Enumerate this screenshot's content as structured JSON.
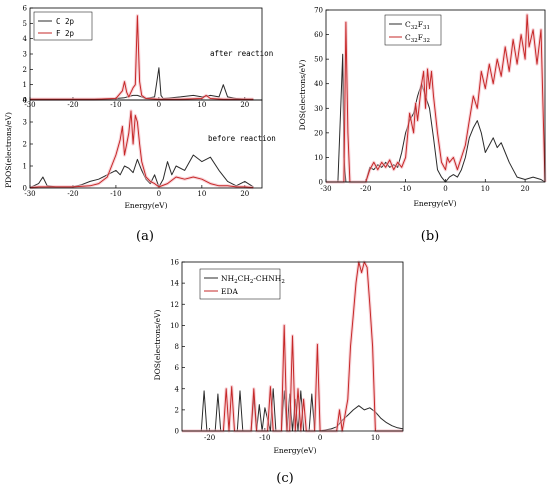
{
  "colors": {
    "black_series": "#2b2b2b",
    "red_series": "#c62828",
    "red_glow": "#f3b8c0"
  },
  "chart_data": [
    {
      "id": "a",
      "type": "line",
      "panel_label": "(a)",
      "xlabel": "Energy(eV)",
      "ylabel": "PDOS(electrons/eV)",
      "xlim": [
        -30,
        24
      ],
      "xticks": [
        -30,
        -20,
        -10,
        0,
        10,
        20
      ],
      "legend": [
        "C 2p",
        "F 2p"
      ],
      "legend_position": "top-left",
      "subplots": [
        {
          "annotation": "after reaction",
          "ylim": [
            0,
            6
          ],
          "yticks": [
            0,
            1,
            2,
            3,
            4,
            5,
            6
          ],
          "series": [
            {
              "name": "C 2p",
              "color": "#2b2b2b",
              "x": [
                -30,
                -26,
                -20,
                -15,
                -10,
                -8,
                -6,
                -5,
                -3,
                -1,
                0,
                0.5,
                1,
                3,
                5,
                8,
                10,
                12,
                14,
                15,
                16,
                18,
                20,
                22
              ],
              "y": [
                0.05,
                0.05,
                0.05,
                0.05,
                0.1,
                0.15,
                0.3,
                0.3,
                0.1,
                0.2,
                2.1,
                0.3,
                0.1,
                0.15,
                0.2,
                0.3,
                0.2,
                0.3,
                0.2,
                1.0,
                0.2,
                0.1,
                0.05,
                0.05
              ]
            },
            {
              "name": "F 2p",
              "color": "#c62828",
              "x": [
                -30,
                -26,
                -20,
                -15,
                -10,
                -8.5,
                -8,
                -7.5,
                -7,
                -6,
                -5.5,
                -5,
                -4.5,
                -4,
                -3,
                0,
                5,
                10,
                11,
                12,
                15,
                20,
                22
              ],
              "y": [
                0.05,
                0.05,
                0.05,
                0.05,
                0.1,
                0.6,
                1.2,
                0.5,
                0.2,
                0.8,
                1.0,
                5.5,
                1.2,
                0.3,
                0.1,
                0.05,
                0.05,
                0.1,
                0.3,
                0.1,
                0.05,
                0.05,
                0.05
              ]
            }
          ]
        },
        {
          "annotation": "before reaction",
          "ylim": [
            0,
            4
          ],
          "yticks": [
            0,
            1,
            2,
            3,
            4
          ],
          "series": [
            {
              "name": "C 2p",
              "color": "#2b2b2b",
              "x": [
                -30,
                -28,
                -27,
                -26,
                -24,
                -20,
                -18,
                -16,
                -14,
                -12,
                -10,
                -9,
                -8,
                -7,
                -6,
                -5,
                -4,
                -3,
                -2,
                -1,
                0,
                1,
                2,
                3,
                4,
                6,
                8,
                10,
                12,
                14,
                16,
                18,
                20,
                22
              ],
              "y": [
                0.02,
                0.2,
                0.5,
                0.1,
                0.05,
                0.05,
                0.15,
                0.3,
                0.4,
                0.6,
                0.8,
                0.6,
                1.0,
                0.9,
                0.7,
                1.3,
                0.8,
                0.4,
                0.2,
                0.6,
                0.05,
                0.4,
                1.2,
                0.6,
                1.0,
                0.8,
                1.5,
                1.2,
                1.4,
                0.8,
                0.3,
                0.1,
                0.3,
                0.05
              ]
            },
            {
              "name": "F 2p",
              "color": "#c62828",
              "x": [
                -30,
                -28,
                -26,
                -24,
                -20,
                -16,
                -14,
                -12,
                -11,
                -10,
                -9,
                -8.5,
                -8,
                -7.5,
                -7,
                -6.5,
                -6,
                -5.5,
                -5,
                -4.5,
                -4,
                -3,
                -2,
                -1,
                0,
                2,
                4,
                6,
                8,
                10,
                12,
                14,
                16,
                18,
                20,
                22
              ],
              "y": [
                0.02,
                0.05,
                0.05,
                0.05,
                0.05,
                0.1,
                0.2,
                0.5,
                1.0,
                1.5,
                2.2,
                2.8,
                1.5,
                2.0,
                2.5,
                3.5,
                2.0,
                3.3,
                3.0,
                2.0,
                1.2,
                0.5,
                0.3,
                0.2,
                0.05,
                0.2,
                0.5,
                0.4,
                0.5,
                0.4,
                0.2,
                0.1,
                0.1,
                0.05,
                0.05,
                0.02
              ]
            }
          ]
        }
      ]
    },
    {
      "id": "b",
      "type": "line",
      "panel_label": "(b)",
      "xlabel": "Energy(eV)",
      "ylabel": "DOS(electrons/eV)",
      "xlim": [
        -30,
        25
      ],
      "ylim": [
        0,
        70
      ],
      "xticks": [
        -30,
        -20,
        -10,
        0,
        10,
        20
      ],
      "yticks": [
        0,
        10,
        20,
        30,
        40,
        50,
        60,
        70
      ],
      "legend": [
        "C32F31",
        "C32F32"
      ],
      "legend_position": "top-left",
      "series": [
        {
          "name": "C32F31",
          "color": "#2b2b2b",
          "x": [
            -30,
            -27,
            -26.3,
            -25.8,
            -25.5,
            -25,
            -24.5,
            -22,
            -20,
            -19,
            -18,
            -17,
            -16,
            -15,
            -14,
            -13,
            -12,
            -11,
            -10,
            -9,
            -8,
            -7,
            -6,
            -5,
            -4,
            -3,
            -2,
            -1,
            0,
            1,
            2,
            3,
            4,
            5,
            6,
            7,
            8,
            9,
            10,
            11,
            12,
            13,
            14,
            15,
            16,
            17,
            18,
            20,
            22,
            24,
            25
          ],
          "y": [
            0,
            0,
            30,
            52,
            10,
            0,
            0,
            0,
            0,
            6,
            5,
            7,
            6,
            8,
            6,
            7,
            6,
            12,
            20,
            25,
            28,
            35,
            40,
            35,
            30,
            18,
            5,
            2,
            0,
            2,
            3,
            2,
            5,
            10,
            18,
            22,
            25,
            20,
            12,
            15,
            18,
            14,
            16,
            12,
            8,
            5,
            2,
            1,
            2,
            1,
            0
          ]
        },
        {
          "name": "C32F32",
          "color": "#c62828",
          "x": [
            -30,
            -26,
            -25.5,
            -25,
            -24.5,
            -24,
            -22,
            -20,
            -19,
            -18,
            -17,
            -16,
            -15,
            -14,
            -13,
            -12,
            -11,
            -10,
            -9,
            -8,
            -7.5,
            -7,
            -6,
            -5.5,
            -5,
            -4.5,
            -4,
            -3.5,
            -3,
            -2,
            -1,
            0,
            0.5,
            1,
            2,
            3,
            4,
            5,
            6,
            7,
            8,
            9,
            10,
            11,
            12,
            13,
            14,
            15,
            16,
            17,
            18,
            19,
            20,
            20.5,
            21,
            22,
            23,
            24,
            25
          ],
          "y": [
            0,
            0,
            0,
            65,
            20,
            0,
            0,
            0,
            5,
            8,
            5,
            8,
            6,
            9,
            5,
            8,
            6,
            10,
            28,
            20,
            32,
            25,
            40,
            45,
            30,
            46,
            38,
            45,
            35,
            20,
            8,
            5,
            10,
            8,
            10,
            5,
            10,
            15,
            25,
            35,
            30,
            45,
            38,
            48,
            40,
            50,
            43,
            55,
            45,
            58,
            48,
            60,
            50,
            68,
            55,
            62,
            48,
            62,
            0
          ]
        }
      ]
    },
    {
      "id": "c",
      "type": "line",
      "panel_label": "(c)",
      "xlabel": "Energy(eV)",
      "ylabel": "DOS(electrons/eV)",
      "xlim": [
        -25,
        15
      ],
      "ylim": [
        0,
        16
      ],
      "xticks": [
        -20,
        -10,
        0,
        10
      ],
      "yticks": [
        0,
        2,
        4,
        6,
        8,
        10,
        12,
        14,
        16
      ],
      "legend": [
        "NH2CH2-CHNH2",
        "EDA"
      ],
      "legend_position": "top-left",
      "series": [
        {
          "name": "NH2CH2-CHNH2",
          "color": "#2b2b2b",
          "x": [
            -25,
            -21.5,
            -21,
            -20.5,
            -19,
            -18.5,
            -18,
            -15,
            -14.5,
            -14,
            -12.5,
            -12,
            -11.5,
            -11,
            -10.5,
            -10,
            -9,
            -8.5,
            -8,
            -7,
            -6.5,
            -6,
            -5.5,
            -5,
            -4.5,
            -4,
            -3.5,
            -3,
            -2,
            -1.5,
            -1,
            0,
            1,
            2,
            3,
            4,
            5,
            6,
            7,
            8,
            9,
            10,
            11,
            12,
            13,
            14,
            15
          ],
          "y": [
            0,
            0,
            3.8,
            0,
            0,
            3.5,
            0,
            0,
            3.8,
            0,
            0,
            3.2,
            0,
            2.5,
            0,
            2.2,
            0,
            4.0,
            0,
            0,
            3.8,
            0,
            3.5,
            0,
            3.0,
            0,
            3.8,
            0,
            0,
            3.5,
            0,
            0,
            0.1,
            0.2,
            0.4,
            1.0,
            1.5,
            2.0,
            2.4,
            2.0,
            2.2,
            1.8,
            1.2,
            0.8,
            0.5,
            0.3,
            0.2
          ]
        },
        {
          "name": "EDA",
          "color": "#c62828",
          "x": [
            -25,
            -17.5,
            -17,
            -16.5,
            -16,
            -15.5,
            -12.5,
            -12,
            -11.5,
            -9.5,
            -9,
            -8.5,
            -7,
            -6.5,
            -6,
            -5.5,
            -5,
            -4.5,
            -4,
            -3.5,
            -3,
            -2.5,
            -2,
            -1,
            -0.5,
            0,
            0.5,
            1,
            2,
            3,
            3.5,
            4,
            5,
            5.5,
            6,
            6.5,
            7,
            7.5,
            8,
            8.5,
            9,
            9.5,
            10,
            15
          ],
          "y": [
            0,
            0,
            4.0,
            0,
            4.2,
            0,
            0,
            4.0,
            0,
            0,
            4.2,
            0,
            0,
            10.0,
            0,
            0,
            9.0,
            0,
            4.0,
            0,
            3.0,
            0,
            0,
            0,
            8.2,
            0,
            0,
            0,
            0,
            0,
            2.0,
            0,
            3.0,
            8.0,
            11.0,
            14.0,
            16.0,
            15.0,
            16.0,
            15.5,
            12.0,
            8.0,
            0,
            0
          ]
        }
      ]
    }
  ]
}
